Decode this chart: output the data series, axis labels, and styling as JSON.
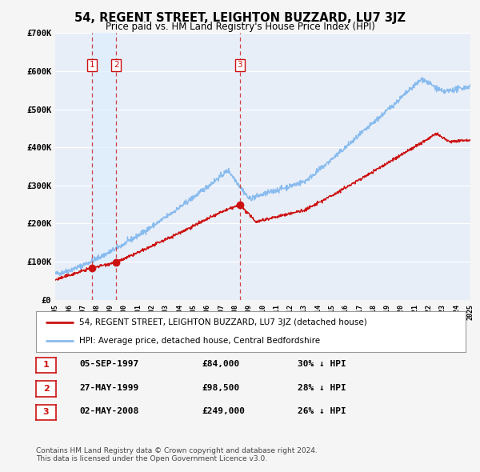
{
  "title": "54, REGENT STREET, LEIGHTON BUZZARD, LU7 3JZ",
  "subtitle": "Price paid vs. HM Land Registry's House Price Index (HPI)",
  "ylim": [
    0,
    700000
  ],
  "yticks": [
    0,
    100000,
    200000,
    300000,
    400000,
    500000,
    600000,
    700000
  ],
  "ytick_labels": [
    "£0",
    "£100K",
    "£200K",
    "£300K",
    "£400K",
    "£500K",
    "£600K",
    "£700K"
  ],
  "background_color": "#f5f5f5",
  "plot_bg_color": "#e8eef8",
  "grid_color": "#ffffff",
  "red_color": "#cc1111",
  "blue_color": "#88bbee",
  "vline_color": "#cc3333",
  "shade_color": "#ddeeff",
  "sale_dates": [
    1997.68,
    1999.41,
    2008.33
  ],
  "sale_prices": [
    84000,
    98500,
    249000
  ],
  "sale_labels": [
    "1",
    "2",
    "3"
  ],
  "legend_entries": [
    "54, REGENT STREET, LEIGHTON BUZZARD, LU7 3JZ (detached house)",
    "HPI: Average price, detached house, Central Bedfordshire"
  ],
  "table_rows": [
    {
      "num": "1",
      "date": "05-SEP-1997",
      "price": "£84,000",
      "pct": "30% ↓ HPI"
    },
    {
      "num": "2",
      "date": "27-MAY-1999",
      "price": "£98,500",
      "pct": "28% ↓ HPI"
    },
    {
      "num": "3",
      "date": "02-MAY-2008",
      "price": "£249,000",
      "pct": "26% ↓ HPI"
    }
  ],
  "footnote1": "Contains HM Land Registry data © Crown copyright and database right 2024.",
  "footnote2": "This data is licensed under the Open Government Licence v3.0."
}
